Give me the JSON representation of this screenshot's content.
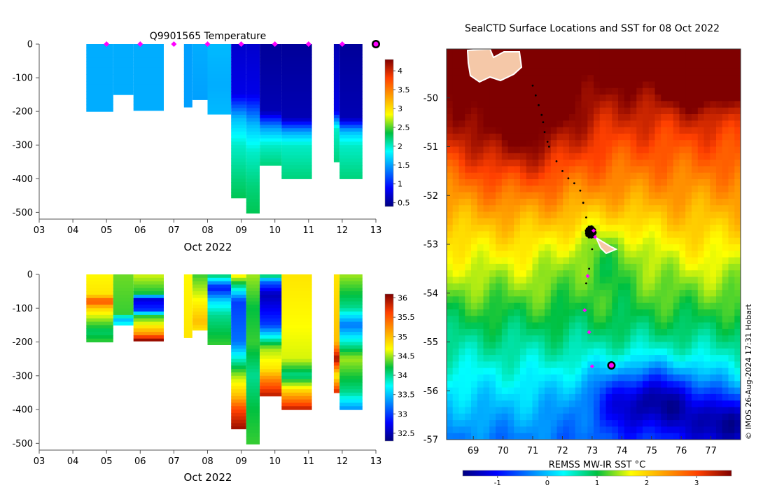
{
  "page": {
    "credit": "© IMOS 26-Aug-2024 17:31 Hobart",
    "colors": {
      "marker": "#ff00ff",
      "land": "#f5c8a8",
      "track": "#000000"
    }
  },
  "chart_data": [
    {
      "id": "temperature-section",
      "type": "heatmap",
      "title": "Q9901565  Temperature",
      "xlabel": "Oct 2022",
      "xticks": [
        "03",
        "04",
        "05",
        "06",
        "07",
        "08",
        "09",
        "10",
        "11",
        "12",
        "13"
      ],
      "xlim": [
        3,
        13
      ],
      "ylim": [
        -520,
        0
      ],
      "yticks": [
        0,
        -100,
        -200,
        -300,
        -400,
        -500
      ],
      "colorbar": {
        "min": 0.4,
        "max": 4.3,
        "ticks": [
          0.5,
          1,
          1.5,
          2,
          2.5,
          3,
          3.5,
          4
        ],
        "colormap": "jet"
      },
      "surface_markers_day": [
        5,
        6,
        7,
        8,
        9,
        10,
        11,
        12
      ],
      "current_marker_day": 13,
      "profiles": [
        {
          "x0": 4.4,
          "x1": 5.2,
          "depth": 200,
          "layers": [
            [
              0,
              1.55
            ],
            [
              200,
              1.55
            ]
          ]
        },
        {
          "x0": 5.2,
          "x1": 5.8,
          "depth": 150,
          "layers": [
            [
              0,
              1.55
            ],
            [
              150,
              1.55
            ]
          ]
        },
        {
          "x0": 5.8,
          "x1": 6.7,
          "depth": 197,
          "layers": [
            [
              0,
              1.55
            ],
            [
              197,
              1.55
            ]
          ]
        },
        {
          "x0": 7.3,
          "x1": 7.55,
          "depth": 187,
          "layers": [
            [
              0,
              1.5
            ],
            [
              187,
              1.5
            ]
          ]
        },
        {
          "x0": 7.55,
          "x1": 8.0,
          "depth": 165,
          "layers": [
            [
              0,
              1.55
            ],
            [
              165,
              1.5
            ]
          ]
        },
        {
          "x0": 8.0,
          "x1": 8.7,
          "depth": 208,
          "layers": [
            [
              0,
              1.6
            ],
            [
              120,
              1.55
            ],
            [
              208,
              1.6
            ]
          ]
        },
        {
          "x0": 8.7,
          "x1": 9.15,
          "depth": 457,
          "layers": [
            [
              0,
              0.7
            ],
            [
              150,
              0.8
            ],
            [
              220,
              1.6
            ],
            [
              300,
              2.0
            ],
            [
              400,
              2.2
            ],
            [
              457,
              2.3
            ]
          ]
        },
        {
          "x0": 9.15,
          "x1": 9.55,
          "depth": 502,
          "layers": [
            [
              0,
              0.7
            ],
            [
              150,
              0.8
            ],
            [
              240,
              1.6
            ],
            [
              320,
              2.0
            ],
            [
              420,
              2.2
            ],
            [
              502,
              2.3
            ]
          ]
        },
        {
          "x0": 9.55,
          "x1": 10.2,
          "depth": 360,
          "layers": [
            [
              0,
              0.5
            ],
            [
              200,
              0.6
            ],
            [
              250,
              1.5
            ],
            [
              300,
              2.0
            ],
            [
              360,
              2.2
            ]
          ]
        },
        {
          "x0": 10.2,
          "x1": 11.1,
          "depth": 400,
          "layers": [
            [
              0,
              0.5
            ],
            [
              220,
              0.6
            ],
            [
              260,
              1.5
            ],
            [
              300,
              2.0
            ],
            [
              400,
              2.2
            ]
          ]
        },
        {
          "x0": 11.75,
          "x1": 11.92,
          "depth": 350,
          "layers": [
            [
              0,
              0.6
            ],
            [
              200,
              0.8
            ],
            [
              250,
              2.0
            ],
            [
              350,
              2.2
            ]
          ]
        },
        {
          "x0": 11.92,
          "x1": 12.6,
          "depth": 400,
          "layers": [
            [
              0,
              0.5
            ],
            [
              220,
              0.6
            ],
            [
              260,
              1.6
            ],
            [
              300,
              2.0
            ],
            [
              400,
              2.2
            ]
          ]
        }
      ]
    },
    {
      "id": "salinity-section",
      "type": "heatmap",
      "title": "",
      "xlabel": "Oct 2022",
      "xticks": [
        "03",
        "04",
        "05",
        "06",
        "07",
        "08",
        "09",
        "10",
        "11",
        "12",
        "13"
      ],
      "xlim": [
        3,
        13
      ],
      "ylim": [
        -520,
        0
      ],
      "yticks": [
        0,
        -100,
        -200,
        -300,
        -400,
        -500
      ],
      "colorbar": {
        "min": 32.3,
        "max": 36.1,
        "ticks": [
          32.5,
          33,
          33.5,
          34,
          34.5,
          35,
          35.5,
          36
        ],
        "colormap": "jet"
      },
      "profiles": [
        {
          "x0": 4.4,
          "x1": 5.2,
          "depth": 200,
          "layers": [
            [
              0,
              34.7
            ],
            [
              60,
              34.8
            ],
            [
              80,
              35.6
            ],
            [
              100,
              34.9
            ],
            [
              140,
              34.4
            ],
            [
              170,
              34.1
            ],
            [
              200,
              34.3
            ]
          ]
        },
        {
          "x0": 5.2,
          "x1": 5.8,
          "depth": 150,
          "layers": [
            [
              0,
              34.4
            ],
            [
              120,
              34.3
            ],
            [
              130,
              33.4
            ],
            [
              150,
              33.8
            ]
          ]
        },
        {
          "x0": 5.8,
          "x1": 6.7,
          "depth": 197,
          "layers": [
            [
              0,
              34.6
            ],
            [
              60,
              34.2
            ],
            [
              70,
              32.6
            ],
            [
              110,
              33.0
            ],
            [
              120,
              34.2
            ],
            [
              150,
              34.7
            ],
            [
              180,
              35.3
            ],
            [
              190,
              36.0
            ],
            [
              197,
              36.0
            ]
          ]
        },
        {
          "x0": 7.3,
          "x1": 7.55,
          "depth": 187,
          "layers": [
            [
              0,
              34.7
            ],
            [
              187,
              34.8
            ]
          ]
        },
        {
          "x0": 7.55,
          "x1": 8.0,
          "depth": 165,
          "layers": [
            [
              0,
              34.3
            ],
            [
              80,
              34.7
            ],
            [
              140,
              35.0
            ],
            [
              165,
              34.8
            ]
          ]
        },
        {
          "x0": 8.0,
          "x1": 8.7,
          "depth": 208,
          "layers": [
            [
              0,
              34.2
            ],
            [
              40,
              32.8
            ],
            [
              80,
              33.6
            ],
            [
              120,
              34.0
            ],
            [
              208,
              34.3
            ]
          ]
        },
        {
          "x0": 8.7,
          "x1": 9.15,
          "depth": 457,
          "layers": [
            [
              0,
              34.8
            ],
            [
              80,
              33.0
            ],
            [
              200,
              33.2
            ],
            [
              300,
              34.5
            ],
            [
              360,
              35.0
            ],
            [
              400,
              35.6
            ],
            [
              457,
              36.0
            ]
          ]
        },
        {
          "x0": 9.15,
          "x1": 9.55,
          "depth": 502,
          "layers": [
            [
              0,
              34.5
            ],
            [
              100,
              34.2
            ],
            [
              200,
              34.3
            ],
            [
              300,
              34.0
            ],
            [
              400,
              34.2
            ],
            [
              502,
              34.3
            ]
          ]
        },
        {
          "x0": 9.55,
          "x1": 10.2,
          "depth": 360,
          "layers": [
            [
              0,
              34.3
            ],
            [
              20,
              33.2
            ],
            [
              60,
              32.5
            ],
            [
              150,
              33.0
            ],
            [
              220,
              34.5
            ],
            [
              280,
              34.8
            ],
            [
              320,
              35.4
            ],
            [
              360,
              35.9
            ]
          ]
        },
        {
          "x0": 10.2,
          "x1": 11.1,
          "depth": 400,
          "layers": [
            [
              0,
              34.8
            ],
            [
              250,
              34.6
            ],
            [
              300,
              34.0
            ],
            [
              340,
              34.8
            ],
            [
              380,
              35.5
            ],
            [
              400,
              35.9
            ]
          ]
        },
        {
          "x0": 11.75,
          "x1": 11.92,
          "depth": 350,
          "layers": [
            [
              0,
              34.8
            ],
            [
              200,
              35.0
            ],
            [
              250,
              36.0
            ],
            [
              300,
              34.7
            ],
            [
              350,
              35.8
            ]
          ]
        },
        {
          "x0": 11.92,
          "x1": 12.6,
          "depth": 400,
          "layers": [
            [
              0,
              34.5
            ],
            [
              100,
              34.0
            ],
            [
              150,
              33.2
            ],
            [
              250,
              34.5
            ],
            [
              350,
              34.0
            ],
            [
              400,
              33.3
            ]
          ]
        }
      ]
    },
    {
      "id": "sst-map",
      "type": "heatmap",
      "title": "SealCTD Surface Locations and SST for 08 Oct 2022",
      "xlabel": "REMSS MW-IR SST °C",
      "xlim": [
        68.1,
        78.0
      ],
      "ylim": [
        -57.0,
        -49.0
      ],
      "xticks": [
        69,
        70,
        71,
        72,
        73,
        74,
        75,
        76,
        77
      ],
      "yticks": [
        -50,
        -51,
        -52,
        -53,
        -54,
        -55,
        -56,
        -57
      ],
      "colorbar": {
        "min": -1.7,
        "max": 3.7,
        "ticks": [
          -1,
          0,
          1,
          2,
          3
        ],
        "colormap": "jet"
      },
      "track_points": [
        [
          71.0,
          -49.75
        ],
        [
          71.1,
          -49.95
        ],
        [
          71.2,
          -50.15
        ],
        [
          71.3,
          -50.35
        ],
        [
          71.35,
          -50.5
        ],
        [
          71.4,
          -50.7
        ],
        [
          71.5,
          -50.9
        ],
        [
          71.55,
          -51.0
        ],
        [
          71.8,
          -51.3
        ],
        [
          72.0,
          -51.5
        ],
        [
          72.2,
          -51.65
        ],
        [
          72.4,
          -51.75
        ],
        [
          72.6,
          -51.9
        ],
        [
          72.7,
          -52.15
        ],
        [
          72.8,
          -52.45
        ],
        [
          72.9,
          -52.7
        ],
        [
          73.0,
          -53.1
        ],
        [
          72.9,
          -53.5
        ],
        [
          72.8,
          -53.8
        ]
      ],
      "cluster_center": [
        72.95,
        -52.75
      ],
      "magenta_points": [
        [
          73.05,
          -52.72
        ],
        [
          73.1,
          -52.85
        ],
        [
          72.85,
          -53.65
        ],
        [
          72.75,
          -54.35
        ],
        [
          72.9,
          -54.8
        ],
        [
          73.0,
          -55.5
        ]
      ],
      "current_position": [
        73.65,
        -55.48
      ]
    }
  ]
}
